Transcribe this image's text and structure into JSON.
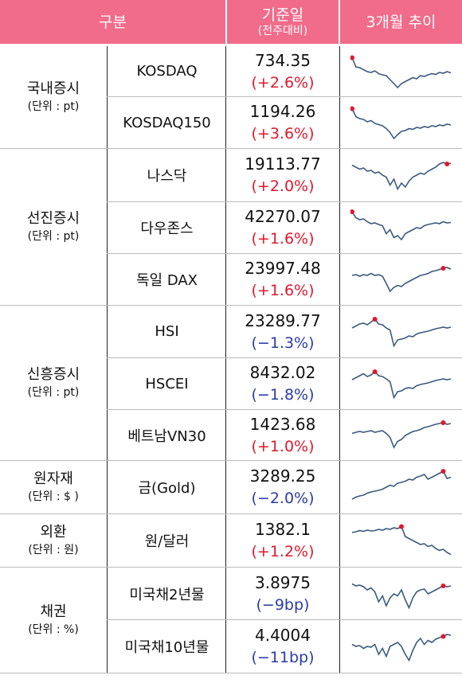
{
  "header": {
    "col_group": "구분",
    "col_value": "기준일",
    "col_value_sub": "(전주대비)",
    "col_trend": "3개월 추이"
  },
  "colors": {
    "header_bg": "#f16b8a",
    "up": "#e0182d",
    "down": "#2b3ca6",
    "spark": "#3a5a80",
    "marker": "#e0182d"
  },
  "categories": [
    {
      "name": "국내증시",
      "unit": "(단위 : pt)"
    },
    {
      "name": "선진증시",
      "unit": "(단위 : pt)"
    },
    {
      "name": "신흥증시",
      "unit": "(단위 : pt)"
    },
    {
      "name": "원자재",
      "unit": "(단위 : $ )"
    },
    {
      "name": "외환",
      "unit": "(단위 : 원)"
    },
    {
      "name": "채권",
      "unit": "(단위 : %)"
    }
  ],
  "rows": [
    {
      "name": "KOSDAQ",
      "value": "734.35",
      "change": "(+2.6%)",
      "dir": "up",
      "trend": [
        0.85,
        0.62,
        0.6,
        0.55,
        0.5,
        0.48,
        0.52,
        0.45,
        0.42,
        0.4,
        0.3,
        0.2,
        0.1,
        0.2,
        0.25,
        0.3,
        0.35,
        0.32,
        0.4,
        0.38,
        0.42,
        0.45,
        0.43,
        0.48,
        0.46,
        0.5,
        0.47
      ],
      "mark": 0
    },
    {
      "name": "KOSDAQ150",
      "value": "1194.26",
      "change": "(+3.6%)",
      "dir": "up",
      "trend": [
        0.85,
        0.65,
        0.6,
        0.58,
        0.52,
        0.55,
        0.48,
        0.45,
        0.42,
        0.35,
        0.25,
        0.1,
        0.2,
        0.28,
        0.3,
        0.35,
        0.33,
        0.38,
        0.36,
        0.4,
        0.38,
        0.42,
        0.4,
        0.44,
        0.42,
        0.46,
        0.44
      ],
      "mark": 0
    },
    {
      "name": "나스닥",
      "value": "19113.77",
      "change": "(+2.0%)",
      "dir": "up",
      "trend": [
        0.75,
        0.7,
        0.65,
        0.68,
        0.6,
        0.62,
        0.55,
        0.58,
        0.5,
        0.45,
        0.25,
        0.4,
        0.15,
        0.3,
        0.2,
        0.35,
        0.45,
        0.5,
        0.55,
        0.52,
        0.6,
        0.65,
        0.7,
        0.78,
        0.82,
        0.78,
        0.8
      ],
      "mark": 25
    },
    {
      "name": "다우존스",
      "value": "42270.07",
      "change": "(+1.6%)",
      "dir": "up",
      "trend": [
        0.9,
        0.75,
        0.7,
        0.72,
        0.65,
        0.6,
        0.62,
        0.58,
        0.55,
        0.35,
        0.45,
        0.25,
        0.3,
        0.2,
        0.35,
        0.4,
        0.45,
        0.5,
        0.48,
        0.55,
        0.58,
        0.6,
        0.62,
        0.6,
        0.65,
        0.62,
        0.63
      ],
      "mark": 0
    },
    {
      "name": "독일 DAX",
      "value": "23997.48",
      "change": "(+1.6%)",
      "dir": "up",
      "trend": [
        0.6,
        0.62,
        0.58,
        0.62,
        0.6,
        0.65,
        0.6,
        0.62,
        0.58,
        0.4,
        0.2,
        0.3,
        0.35,
        0.32,
        0.4,
        0.45,
        0.5,
        0.55,
        0.6,
        0.62,
        0.65,
        0.7,
        0.72,
        0.75,
        0.78,
        0.8,
        0.76
      ],
      "mark": 24
    },
    {
      "name": "HSI",
      "value": "23289.77",
      "change": "(−1.3%)",
      "dir": "down",
      "trend": [
        0.6,
        0.65,
        0.7,
        0.72,
        0.68,
        0.75,
        0.82,
        0.7,
        0.68,
        0.6,
        0.55,
        0.15,
        0.3,
        0.32,
        0.35,
        0.4,
        0.38,
        0.45,
        0.48,
        0.5,
        0.52,
        0.55,
        0.58,
        0.6,
        0.62,
        0.6,
        0.62
      ],
      "mark": 6
    },
    {
      "name": "HSCEI",
      "value": "8432.02",
      "change": "(−1.8%)",
      "dir": "down",
      "trend": [
        0.6,
        0.65,
        0.7,
        0.75,
        0.68,
        0.72,
        0.8,
        0.7,
        0.68,
        0.62,
        0.55,
        0.15,
        0.3,
        0.32,
        0.38,
        0.4,
        0.38,
        0.45,
        0.48,
        0.5,
        0.52,
        0.55,
        0.58,
        0.6,
        0.62,
        0.6,
        0.62
      ],
      "mark": 6
    },
    {
      "name": "베트남VN30",
      "value": "1423.68",
      "change": "(+1.0%)",
      "dir": "up",
      "trend": [
        0.55,
        0.58,
        0.6,
        0.58,
        0.6,
        0.62,
        0.58,
        0.6,
        0.62,
        0.55,
        0.45,
        0.2,
        0.35,
        0.4,
        0.5,
        0.55,
        0.6,
        0.62,
        0.65,
        0.7,
        0.72,
        0.75,
        0.78,
        0.8,
        0.82,
        0.78,
        0.8
      ],
      "mark": 24
    },
    {
      "name": "금(Gold)",
      "value": "3289.25",
      "change": "(−2.0%)",
      "dir": "down",
      "trend": [
        0.2,
        0.25,
        0.28,
        0.3,
        0.35,
        0.38,
        0.4,
        0.42,
        0.45,
        0.5,
        0.55,
        0.52,
        0.6,
        0.62,
        0.65,
        0.7,
        0.68,
        0.75,
        0.78,
        0.82,
        0.7,
        0.75,
        0.8,
        0.85,
        0.9,
        0.72,
        0.75
      ],
      "mark": 24
    },
    {
      "name": "원/달러",
      "value": "1382.1",
      "change": "(+1.2%)",
      "dir": "up",
      "trend": [
        0.7,
        0.72,
        0.75,
        0.73,
        0.76,
        0.74,
        0.75,
        0.78,
        0.76,
        0.8,
        0.78,
        0.82,
        0.8,
        0.85,
        0.6,
        0.55,
        0.5,
        0.45,
        0.4,
        0.42,
        0.35,
        0.38,
        0.3,
        0.25,
        0.28,
        0.2,
        0.15
      ],
      "mark": 13
    },
    {
      "name": "미국채2년물",
      "value": "3.8975",
      "change": "(−9bp)",
      "dir": "down",
      "trend": [
        0.75,
        0.7,
        0.72,
        0.68,
        0.6,
        0.65,
        0.55,
        0.3,
        0.45,
        0.2,
        0.4,
        0.5,
        0.45,
        0.6,
        0.35,
        0.15,
        0.4,
        0.55,
        0.6,
        0.62,
        0.5,
        0.55,
        0.6,
        0.65,
        0.7,
        0.68,
        0.7
      ],
      "mark": 24
    },
    {
      "name": "미국채10년물",
      "value": "4.4004",
      "change": "(−11bp)",
      "dir": "down",
      "trend": [
        0.55,
        0.5,
        0.52,
        0.45,
        0.5,
        0.48,
        0.55,
        0.3,
        0.45,
        0.25,
        0.5,
        0.55,
        0.6,
        0.5,
        0.3,
        0.15,
        0.4,
        0.6,
        0.7,
        0.55,
        0.65,
        0.6,
        0.68,
        0.72,
        0.75,
        0.8,
        0.78
      ],
      "mark": 24
    }
  ]
}
